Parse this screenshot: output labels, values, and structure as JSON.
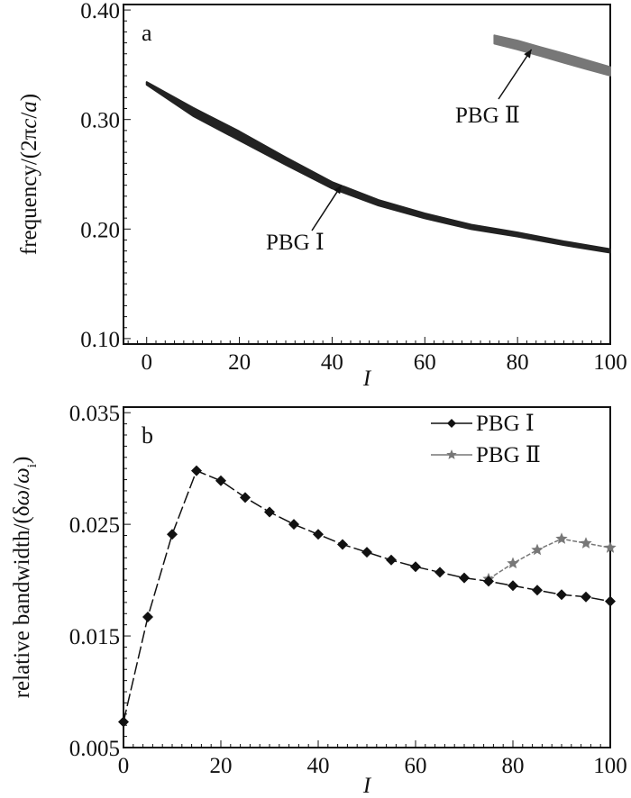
{
  "chart_data": [
    {
      "type": "area",
      "panel_label": "a",
      "xlabel": "I",
      "ylabel_parts": [
        "frequency/(2π",
        "c",
        "/",
        "a",
        ")"
      ],
      "xlim": [
        -5,
        100
      ],
      "ylim": [
        0.095,
        0.405
      ],
      "xticks": [
        0,
        20,
        40,
        60,
        80,
        100
      ],
      "xtick_labels": [
        "0",
        "20",
        "40",
        "60",
        "80",
        "100"
      ],
      "yticks": [
        0.1,
        0.2,
        0.3,
        0.4
      ],
      "ytick_labels": [
        "0.10",
        "0.20",
        "0.30",
        "0.40"
      ],
      "grid": false,
      "series": [
        {
          "name": "PBG Ⅰ",
          "color": "#222222",
          "x": [
            0,
            10,
            20,
            30,
            40,
            50,
            60,
            70,
            80,
            90,
            100
          ],
          "lower": [
            0.3318,
            0.3033,
            0.2809,
            0.2586,
            0.2371,
            0.2215,
            0.2098,
            0.1999,
            0.1931,
            0.1853,
            0.1784
          ],
          "upper": [
            0.3342,
            0.3107,
            0.2891,
            0.2654,
            0.2429,
            0.2265,
            0.2143,
            0.204,
            0.1969,
            0.1888,
            0.1817
          ]
        },
        {
          "name": "PBG Ⅱ",
          "color": "#777777",
          "x": [
            75,
            80,
            85,
            90,
            95,
            100
          ],
          "lower": [
            0.3693,
            0.364,
            0.358,
            0.3518,
            0.3459,
            0.3401
          ],
          "upper": [
            0.3768,
            0.372,
            0.366,
            0.3602,
            0.3541,
            0.3479
          ]
        }
      ],
      "annotations": [
        {
          "text": "PBG Ⅰ",
          "points_to": [
            42,
            0.24
          ]
        },
        {
          "text": "PBG Ⅱ",
          "points_to": [
            83,
            0.364
          ]
        }
      ]
    },
    {
      "type": "line",
      "panel_label": "b",
      "xlabel": "I",
      "ylabel_parts": [
        "relative bandwidth/(δ",
        "ω",
        "/",
        "ω",
        "i",
        ")"
      ],
      "xlim": [
        0,
        100
      ],
      "ylim": [
        0.005,
        0.0355
      ],
      "xticks": [
        0,
        20,
        40,
        60,
        80,
        100
      ],
      "xtick_labels": [
        "0",
        "20",
        "40",
        "60",
        "80",
        "100"
      ],
      "yticks": [
        0.005,
        0.015,
        0.025,
        0.035
      ],
      "ytick_labels": [
        "0.005",
        "0.015",
        "0.025",
        "0.035"
      ],
      "grid": false,
      "legend": "top-right",
      "series": [
        {
          "name": "PBG Ⅰ",
          "marker": "diamond",
          "color": "#111111",
          "x": [
            0,
            5,
            10,
            15,
            20,
            25,
            30,
            35,
            40,
            45,
            50,
            55,
            60,
            65,
            70,
            75,
            80,
            85,
            90,
            95,
            100
          ],
          "y": [
            0.0073,
            0.0167,
            0.0241,
            0.0298,
            0.0289,
            0.0274,
            0.0261,
            0.025,
            0.0241,
            0.0232,
            0.0225,
            0.0218,
            0.0212,
            0.0207,
            0.0202,
            0.0199,
            0.0195,
            0.0191,
            0.0187,
            0.0185,
            0.0181
          ]
        },
        {
          "name": "PBG Ⅱ",
          "marker": "star",
          "color": "#777777",
          "x": [
            75,
            80,
            85,
            90,
            95,
            100
          ],
          "y": [
            0.0201,
            0.0215,
            0.0227,
            0.0237,
            0.0233,
            0.0229
          ]
        }
      ]
    }
  ]
}
